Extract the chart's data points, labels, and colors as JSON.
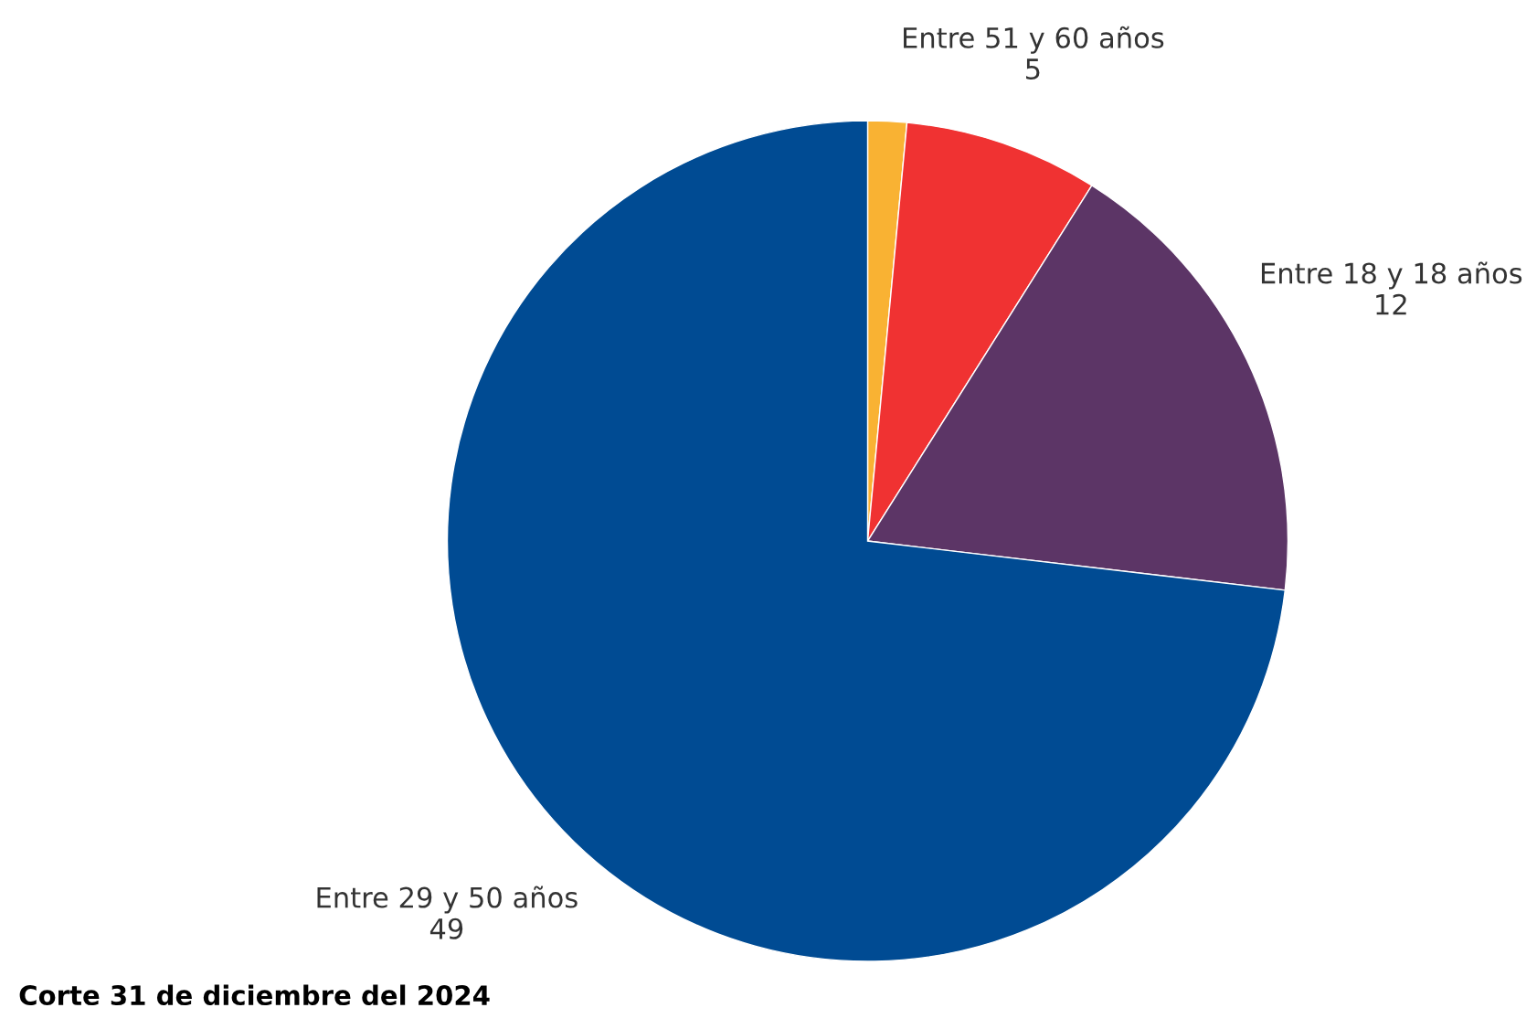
{
  "chart_data": {
    "type": "pie",
    "categories": [
      null,
      "Entre 51 y 60 años",
      "Entre 18 y 18 años",
      "Entre 29 y 50 años"
    ],
    "values": [
      1,
      5,
      12,
      49
    ],
    "colors": [
      "#f9b233",
      "#f03232",
      "#5c3566",
      "#004b93"
    ],
    "value_labels": [
      null,
      "5",
      "12",
      "49"
    ],
    "annotations": [
      "Corte 31 de diciembre del 2024"
    ]
  }
}
